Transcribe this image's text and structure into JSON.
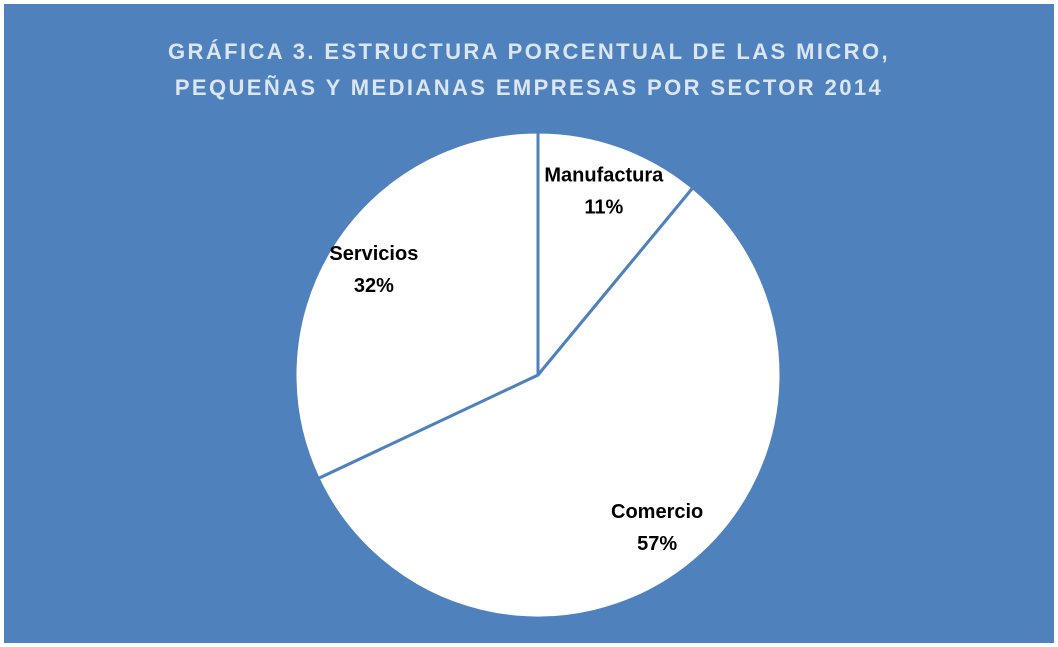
{
  "chart_data": {
    "type": "pie",
    "title": "GRÁFICA 3. ESTRUCTURA PORCENTUAL DE LAS MICRO, PEQUEÑAS Y MEDIANAS EMPRESAS POR SECTOR 2014",
    "categories": [
      "Manufactura",
      "Comercio",
      "Servicios"
    ],
    "values": [
      11,
      57,
      32
    ],
    "value_labels": [
      "11%",
      "57%",
      "32%"
    ],
    "color": "#ffffff",
    "background": "#4f81bd"
  }
}
